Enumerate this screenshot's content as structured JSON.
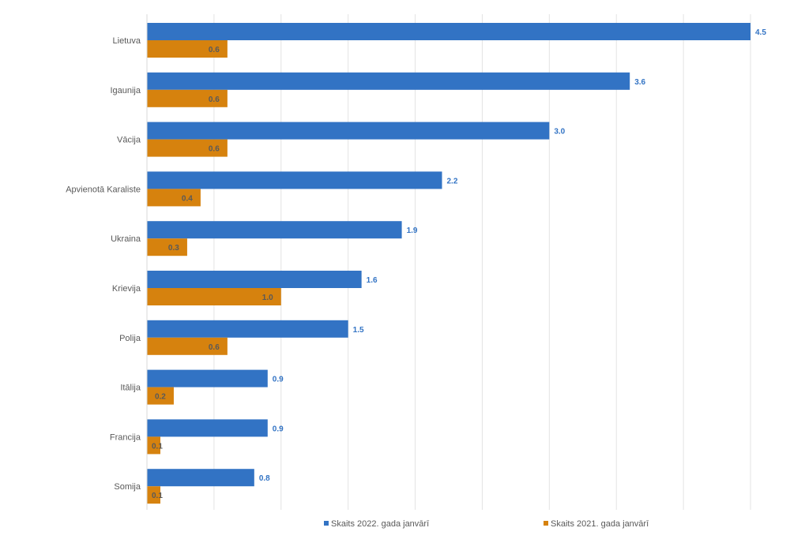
{
  "chart_data": {
    "type": "bar",
    "orientation": "horizontal",
    "categories": [
      "Lietuva",
      "Igaunija",
      "Vācija",
      "Apvienotā Karaliste",
      "Ukraina",
      "Krievija",
      "Polija",
      "Itālija",
      "Francija",
      "Somija"
    ],
    "series": [
      {
        "name": "Skaits 2022. gada janvārī",
        "color": "#3273c4",
        "label_color": "#3273c4",
        "values": [
          4.5,
          3.6,
          3.0,
          2.2,
          1.9,
          1.6,
          1.5,
          0.9,
          0.9,
          0.8
        ],
        "labels": [
          "4.5",
          "3.6",
          "3.0",
          "2.2",
          "1.9",
          "1.6",
          "1.5",
          "0.9",
          "0.9",
          "0.8"
        ]
      },
      {
        "name": "Skaits 2021. gada janvārī",
        "color": "#d6820e",
        "label_color": "#595959",
        "values": [
          0.6,
          0.6,
          0.6,
          0.4,
          0.3,
          1.0,
          0.6,
          0.2,
          0.1,
          0.1
        ],
        "labels": [
          "0.6",
          "0.6",
          "0.6",
          "0.4",
          "0.3",
          "1.0",
          "0.6",
          "0.2",
          "0.1",
          "0.1"
        ]
      }
    ],
    "xlim": [
      0,
      4.5
    ],
    "grid": true,
    "legend_position": "bottom",
    "title": "",
    "xlabel": "",
    "ylabel": ""
  }
}
